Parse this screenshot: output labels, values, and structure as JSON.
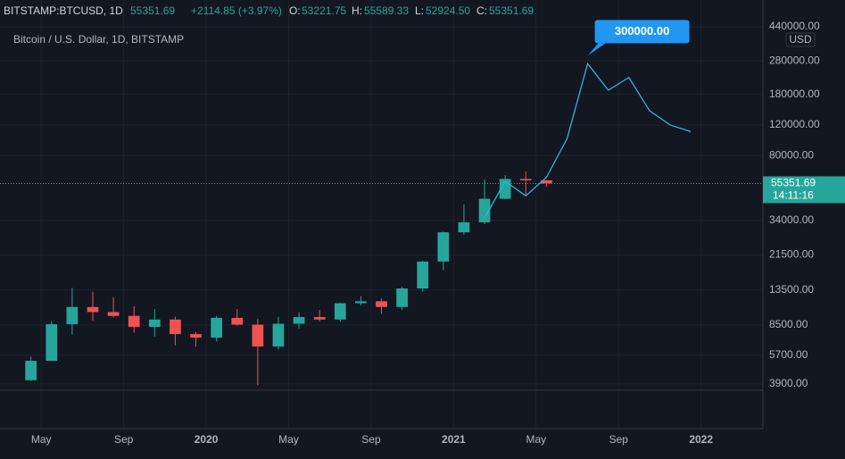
{
  "header": {
    "symbol": "BITSTAMP:BTCUSD, 1D",
    "last": "55351.69",
    "change": "+2114.85 (+3.97%)",
    "o_label": "O:",
    "o": "53221.75",
    "h_label": "H:",
    "h": "55589.33",
    "l_label": "L:",
    "l": "52924.50",
    "c_label": "C:",
    "c": "55351.69"
  },
  "chart_data": {
    "type": "candlestick",
    "title": "Bitcoin / U.S. Dollar, 1D, BITSTAMP",
    "currency": "USD",
    "log_scale": true,
    "grid": true,
    "up_color": "#26a69a",
    "down_color": "#ef5350",
    "x": [
      "2019-04",
      "2019-05",
      "2019-06",
      "2019-07",
      "2019-08",
      "2019-09",
      "2019-10",
      "2019-11",
      "2019-12",
      "2020-01",
      "2020-02",
      "2020-03",
      "2020-04",
      "2020-05",
      "2020-06",
      "2020-07",
      "2020-08",
      "2020-09",
      "2020-10",
      "2020-11",
      "2020-12",
      "2021-01",
      "2021-02",
      "2021-03",
      "2021-04",
      "2021-05"
    ],
    "open": [
      4100,
      5300,
      8600,
      10800,
      10100,
      9600,
      8300,
      9150,
      7550,
      7200,
      9350,
      8550,
      6400,
      8650,
      9450,
      9150,
      11350,
      11650,
      10800,
      13800,
      19700,
      29000,
      33100,
      45200,
      58800,
      57700
    ],
    "high": [
      5600,
      9000,
      13900,
      13200,
      12300,
      10900,
      10500,
      9500,
      7750,
      9600,
      10500,
      9200,
      9450,
      10100,
      10400,
      11450,
      12450,
      12100,
      14100,
      19900,
      29300,
      42000,
      58300,
      61800,
      64800,
      58000
    ],
    "low": [
      4050,
      5300,
      7500,
      9000,
      9400,
      7700,
      7300,
      6500,
      6400,
      6850,
      8450,
      3850,
      6150,
      8100,
      8900,
      8900,
      11000,
      9850,
      10400,
      13200,
      17600,
      28100,
      32300,
      45000,
      47000,
      52900
    ],
    "close": [
      5300,
      8600,
      10800,
      10100,
      9600,
      8300,
      9150,
      7550,
      7200,
      9350,
      8550,
      6400,
      8650,
      9450,
      9150,
      11350,
      11650,
      10800,
      13800,
      19700,
      29000,
      33100,
      45200,
      58800,
      57700,
      55351.69
    ],
    "forecast": {
      "color": "#2fb4d8",
      "x": [
        "2021-02",
        "2021-03",
        "2021-04",
        "2021-05",
        "2021-06",
        "2021-07",
        "2021-08",
        "2021-09",
        "2021-10",
        "2021-11",
        "2021-12"
      ],
      "values": [
        35000,
        57000,
        47000,
        60000,
        100000,
        270000,
        190000,
        225000,
        145000,
        120000,
        110000
      ]
    },
    "annotation": {
      "label": "300000.00",
      "value": 300000,
      "x": "2021-07"
    },
    "last_price": 55351.69,
    "countdown": "14:11:16",
    "xlim": [
      "2019-03",
      "2022-04"
    ],
    "xticks": [
      {
        "value": "2019-05",
        "label": "May"
      },
      {
        "value": "2019-09",
        "label": "Sep"
      },
      {
        "value": "2020-01",
        "label": "2020"
      },
      {
        "value": "2020-05",
        "label": "May"
      },
      {
        "value": "2020-09",
        "label": "Sep"
      },
      {
        "value": "2021-01",
        "label": "2021"
      },
      {
        "value": "2021-05",
        "label": "May"
      },
      {
        "value": "2021-09",
        "label": "Sep"
      },
      {
        "value": "2022-01",
        "label": "2022"
      }
    ],
    "ylim": [
      2160,
      627000
    ],
    "yticks": [
      {
        "value": 440000,
        "label": "440000.00"
      },
      {
        "value": 280000,
        "label": "280000.00"
      },
      {
        "value": 180000,
        "label": "180000.00"
      },
      {
        "value": 120000,
        "label": "120000.00"
      },
      {
        "value": 80000,
        "label": "80000.00"
      },
      {
        "value": 34000,
        "label": "34000.00"
      },
      {
        "value": 21500,
        "label": "21500.00"
      },
      {
        "value": 13500,
        "label": "13500.00"
      },
      {
        "value": 8500,
        "label": "8500.00"
      },
      {
        "value": 5700,
        "label": "5700.00"
      },
      {
        "value": 3900,
        "label": "3900.00"
      }
    ]
  }
}
